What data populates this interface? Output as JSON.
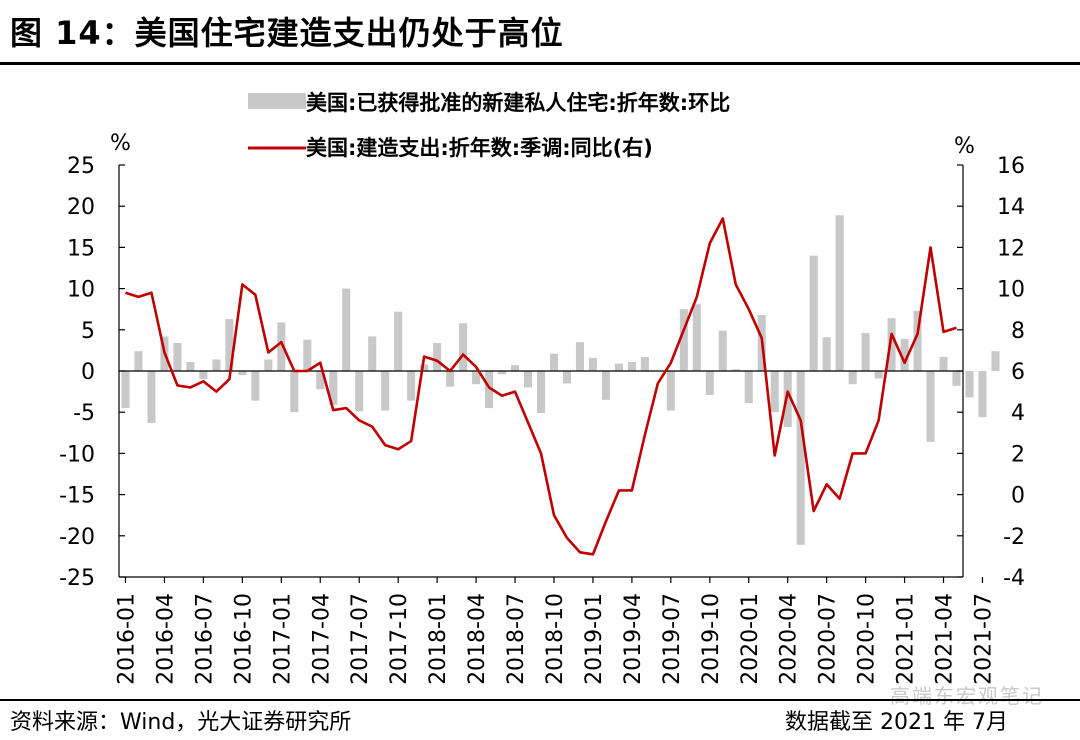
{
  "header": {
    "title": "图 14：美国住宅建造支出仍处于高位"
  },
  "footer": {
    "source": "资料来源：Wind，光大证券研究所",
    "date": "数据截至 2021 年 7月"
  },
  "watermark": "高端东宏观笔记",
  "chart_data": {
    "type": "bar+line",
    "title": "",
    "left_axis": {
      "label": "%",
      "ylim": [
        -25,
        25
      ],
      "ticks": [
        "25",
        "20",
        "15",
        "10",
        "5",
        "0",
        "-5",
        "-10",
        "-15",
        "-20",
        "-25"
      ]
    },
    "right_axis": {
      "label": "%",
      "ylim": [
        -4,
        16
      ],
      "ticks": [
        "16",
        "14",
        "12",
        "10",
        "8",
        "6",
        "4",
        "2",
        "0",
        "-2",
        "-4"
      ]
    },
    "x_tick_labels": [
      "2016-01",
      "2016-04",
      "2016-07",
      "2016-10",
      "2017-01",
      "2017-04",
      "2017-07",
      "2017-10",
      "2018-01",
      "2018-04",
      "2018-07",
      "2018-10",
      "2019-01",
      "2019-04",
      "2019-07",
      "2019-10",
      "2020-01",
      "2020-04",
      "2020-07",
      "2020-10",
      "2021-01",
      "2021-04",
      "2021-07"
    ],
    "grid": false,
    "legend_position": "top-center",
    "colors": {
      "bar": "#c8c8c8",
      "line": "#c00000"
    },
    "series": [
      {
        "name": "美国:已获得批准的新建私人住宅:折年数:环比",
        "type": "bar",
        "axis": "left",
        "values": [
          -4.5,
          2.4,
          -6.3,
          4.2,
          3.4,
          1.1,
          -1.0,
          1.4,
          6.3,
          -0.5,
          -3.6,
          1.4,
          5.9,
          -5.0,
          3.8,
          -2.2,
          -4.1,
          10.0,
          -4.9,
          4.2,
          -4.8,
          7.2,
          -3.6,
          0.8,
          3.4,
          -1.9,
          5.8,
          -1.6,
          -4.5,
          -0.4,
          0.7,
          -2.0,
          -5.1,
          2.1,
          -1.5,
          3.5,
          1.6,
          -3.5,
          0.9,
          1.1,
          1.7,
          0.0,
          -4.8,
          7.5,
          8.1,
          -2.9,
          4.9,
          0.2,
          -3.9,
          6.8,
          -5.0,
          -6.8,
          -21.1,
          14.0,
          4.1,
          18.9,
          -1.6,
          4.6,
          -0.9,
          6.4,
          3.9,
          7.3,
          -8.6,
          1.7,
          -1.8,
          -3.2,
          -5.6,
          2.4
        ]
      },
      {
        "name": "美国:建造支出:折年数:季调:同比(右)",
        "type": "line",
        "axis": "right",
        "values": [
          9.8,
          9.6,
          9.8,
          6.9,
          5.3,
          5.2,
          5.5,
          5.0,
          5.6,
          10.2,
          9.7,
          6.9,
          7.4,
          6.0,
          6.0,
          6.4,
          4.1,
          4.2,
          3.6,
          3.3,
          2.4,
          2.2,
          2.6,
          6.7,
          6.5,
          6.0,
          6.8,
          6.2,
          5.2,
          4.8,
          5.0,
          3.5,
          2.0,
          -1.0,
          -2.1,
          -2.8,
          -2.9,
          -1.3,
          0.2,
          0.2,
          2.9,
          5.4,
          6.4,
          8.0,
          9.6,
          12.2,
          13.4,
          10.2,
          9.0,
          7.6,
          1.9,
          5.0,
          3.6,
          -0.8,
          0.5,
          -0.2,
          2.0,
          2.0,
          3.6,
          7.8,
          6.4,
          7.8,
          12.0,
          7.9,
          8.1
        ]
      }
    ]
  }
}
